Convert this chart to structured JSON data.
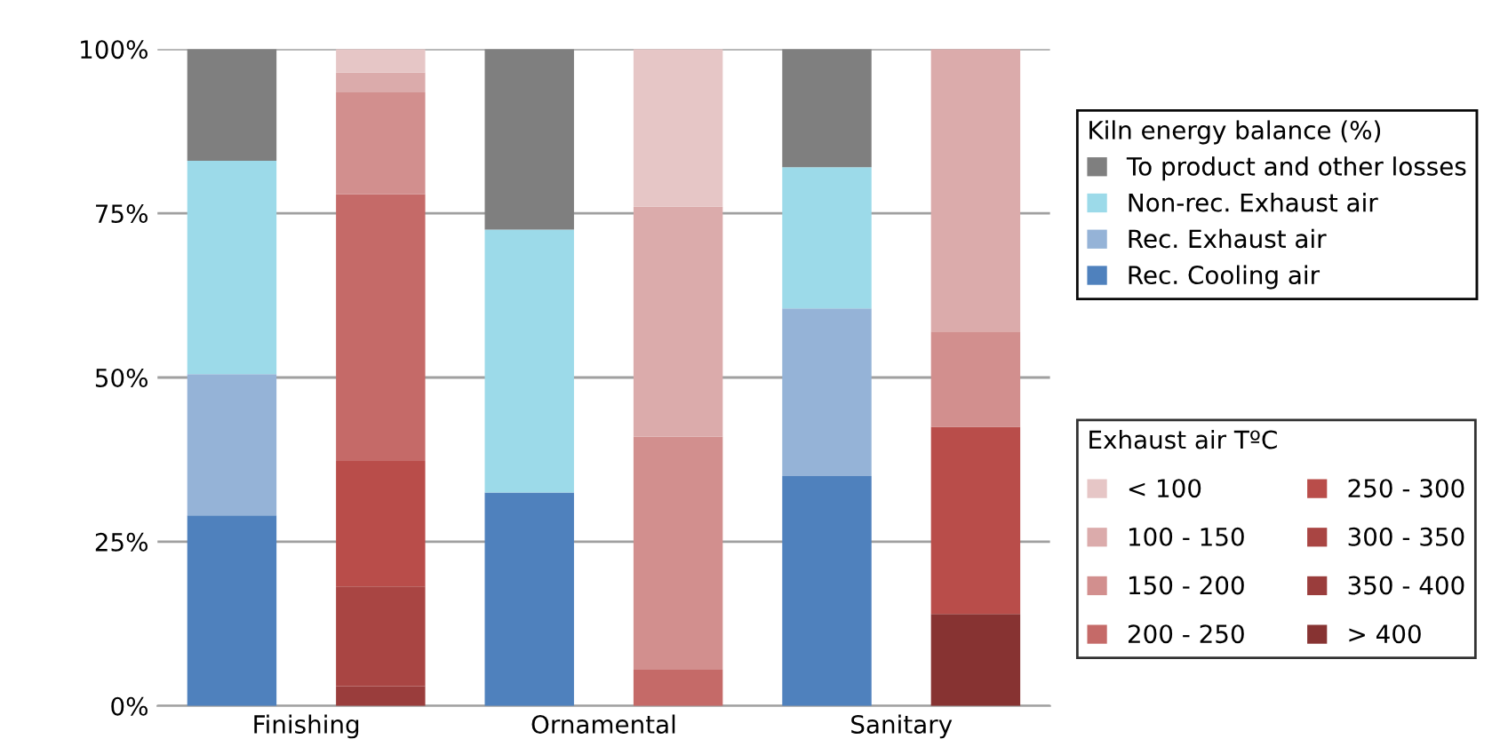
{
  "chart_data": {
    "type": "bar",
    "stacked": true,
    "categories": [
      "Finishing",
      null,
      "Ornamental",
      null,
      "Sanitary",
      null
    ],
    "legend_title": [
      "Kiln energy balance (%)",
      "Exhaust air TºC"
    ],
    "legend": "right",
    "grid": "y",
    "ylim": [
      0,
      100
    ],
    "yticks": [
      {
        "value": 0,
        "label": "0%"
      },
      {
        "value": 25,
        "label": "25%"
      },
      {
        "value": 50,
        "label": "50%"
      },
      {
        "value": 75,
        "label": "75%"
      },
      {
        "value": 100,
        "label": "100%"
      }
    ],
    "series": [
      {
        "name": "Rec. Cooling air",
        "color": "#4f81bd",
        "values": [
          29,
          null,
          32.5,
          null,
          35,
          null
        ]
      },
      {
        "name": "Rec. Exhaust air",
        "color": "#95b3d7",
        "values": [
          21.5,
          null,
          0,
          null,
          25.5,
          null
        ]
      },
      {
        "name": "Non-rec. Exhaust air",
        "color": "#9cdae9",
        "values": [
          32.5,
          null,
          40,
          null,
          21.5,
          null
        ]
      },
      {
        "name": "To product and other losses",
        "color": "#7f7f7f",
        "values": [
          17,
          null,
          27.5,
          null,
          18,
          null
        ]
      },
      {
        "name": "> 400",
        "color": "#873332",
        "values": [
          null,
          0,
          null,
          0,
          null,
          14
        ]
      },
      {
        "name": "350 - 400",
        "color": "#9a3d3c",
        "values": [
          null,
          3,
          null,
          0,
          null,
          0
        ]
      },
      {
        "name": "300 - 350",
        "color": "#a94543",
        "values": [
          null,
          15.2,
          null,
          0,
          null,
          0
        ]
      },
      {
        "name": "250 - 300",
        "color": "#b94d4a",
        "values": [
          null,
          19.1,
          null,
          0,
          null,
          28.5
        ]
      },
      {
        "name": "200 - 250",
        "color": "#c56a68",
        "values": [
          null,
          40.6,
          null,
          5.5,
          null,
          0
        ]
      },
      {
        "name": "150 - 200",
        "color": "#d28f8e",
        "values": [
          null,
          15.5,
          null,
          35.5,
          null,
          14.5
        ]
      },
      {
        "name": "100 - 150",
        "color": "#dbabab",
        "values": [
          null,
          3,
          null,
          35,
          null,
          43
        ]
      },
      {
        "name": "< 100",
        "color": "#e6c6c6",
        "values": [
          null,
          3.6,
          null,
          24,
          null,
          0
        ]
      }
    ]
  }
}
